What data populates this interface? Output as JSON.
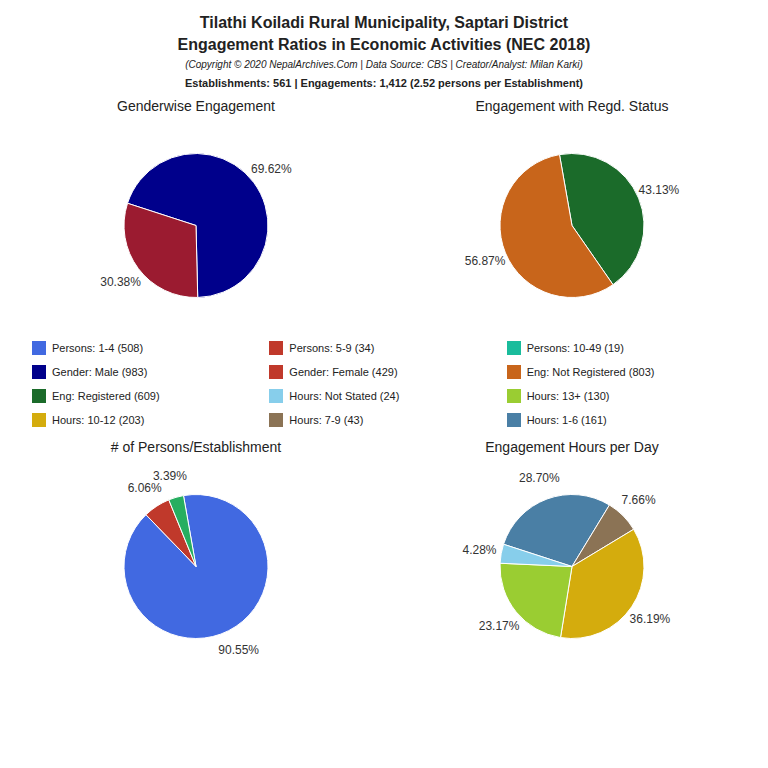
{
  "title": "Tilathi Koiladi Rural Municipality, Saptari District",
  "subtitle": "Engagement Ratios in Economic Activities (NEC 2018)",
  "annotations": [
    "(Copyright © 2020 NepalArchives.Com | Data Source: CBS | Creator/Analyst: Milan Karki)",
    "Establishments: 561 | Engagements: 1,412 (2.52 persons per Establishment)"
  ],
  "legend_items": [
    {
      "name": "Persons: 1-4 (508)",
      "color": "#4169E1"
    },
    {
      "name": "Persons: 5-9 (34)",
      "color": "#C0392B"
    },
    {
      "name": "Persons: 10-49 (19)",
      "color": "#1ABC9C"
    },
    {
      "name": "Gender: Male (983)",
      "color": "#00008B"
    },
    {
      "name": "Gender: Female (429)",
      "color": "#C0392B"
    },
    {
      "name": "Eng: Not Registered (803)",
      "color": "#C8651B"
    },
    {
      "name": "Eng: Registered (609)",
      "color": "#1B6B2A"
    },
    {
      "name": "Hours: Not Stated (24)",
      "color": "#87CEEB"
    },
    {
      "name": "Hours: 13+ (130)",
      "color": "#9ACD32"
    },
    {
      "name": "Hours: 10-12 (203)",
      "color": "#D4AC0D"
    },
    {
      "name": "Hours: 7-9 (43)",
      "color": "#8B7355"
    },
    {
      "name": "Hours: 1-6 (161)",
      "color": "#4A7FA5"
    }
  ],
  "chart_data": [
    {
      "type": "pie",
      "title": "Genderwise Engagement",
      "values": [
        69.62,
        30.38
      ],
      "value_labels": [
        "69.62%",
        "30.38%"
      ],
      "colors": [
        "#00008B",
        "#9B1B30"
      ],
      "data_labels": true
    },
    {
      "type": "pie",
      "title": "Engagement with Regd. Status",
      "values": [
        43.13,
        56.87
      ],
      "value_labels": [
        "43.13%",
        "56.87%"
      ],
      "colors": [
        "#1B6B2A",
        "#C8651B"
      ],
      "data_labels": true
    },
    {
      "type": "pie",
      "title": "# of Persons/Establishment",
      "values": [
        90.55,
        6.06,
        3.39
      ],
      "value_labels": [
        "90.55%",
        "6.06%",
        "3.39%"
      ],
      "colors": [
        "#4169E1",
        "#C0392B",
        "#27AE60"
      ],
      "data_labels": true
    },
    {
      "type": "pie",
      "title": "Engagement Hours per Day",
      "values": [
        28.7,
        7.66,
        36.19,
        23.17,
        4.28
      ],
      "value_labels": [
        "28.70%",
        "7.66%",
        "36.19%",
        "23.17%",
        "4.28%"
      ],
      "colors": [
        "#4A7FA5",
        "#8B7355",
        "#D4AC0D",
        "#9ACD32",
        "#87CEEB"
      ],
      "data_labels": true
    }
  ]
}
